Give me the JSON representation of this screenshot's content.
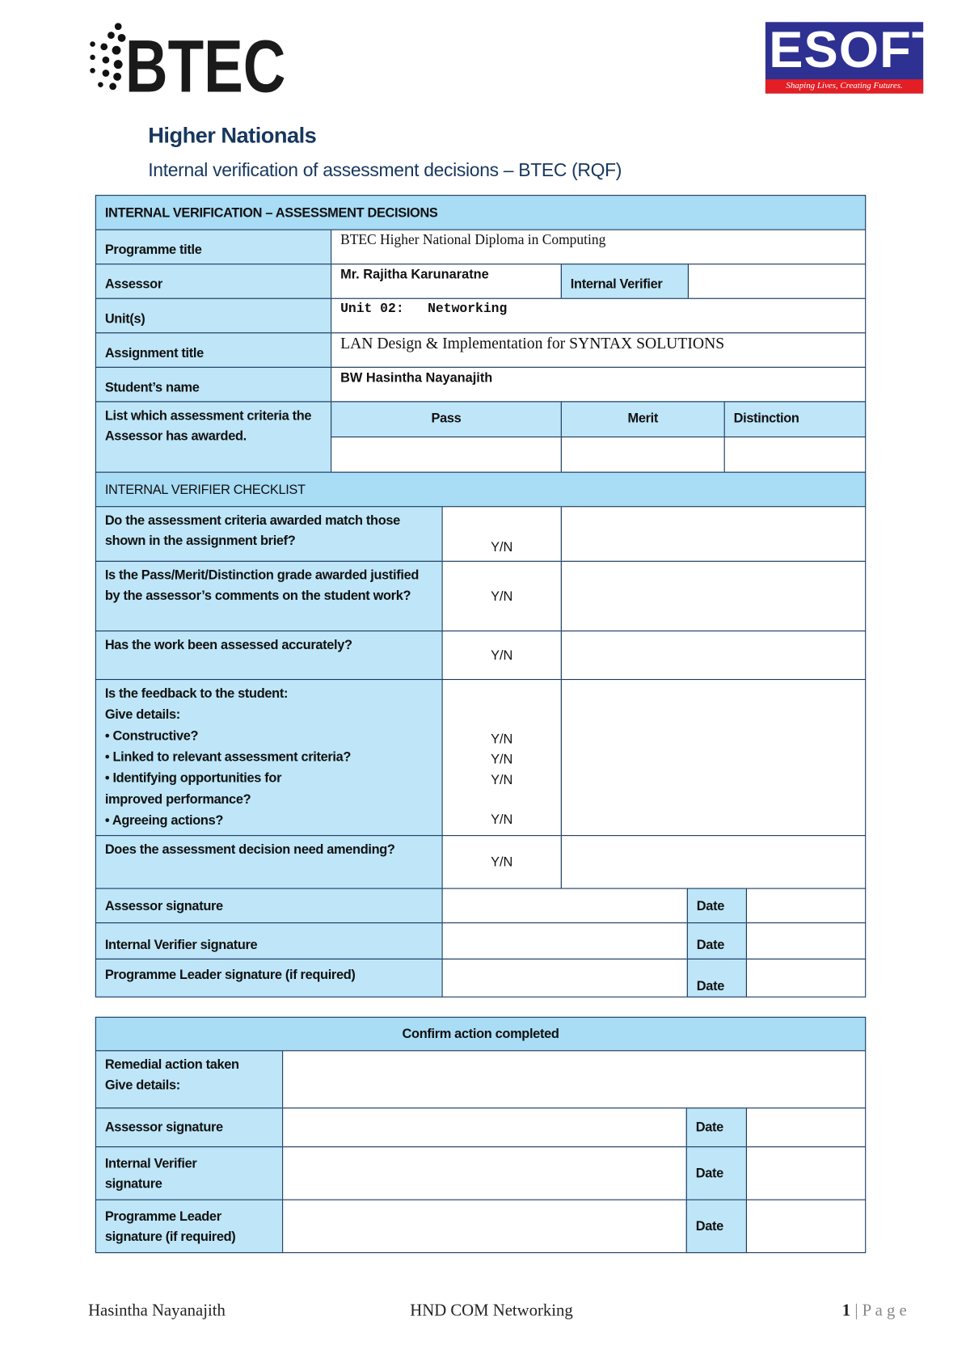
{
  "logos": {
    "btec": "BTEC",
    "esoft": "ESOFT",
    "esoft_tagline": "Shaping Lives, Creating Futures."
  },
  "header": {
    "title": "Higher Nationals",
    "subtitle": "Internal verification of assessment decisions – BTEC (RQF)"
  },
  "decisions": {
    "heading": "INTERNAL VERIFICATION – ASSESSMENT DECISIONS",
    "programme_label": "Programme title",
    "programme_value": "BTEC Higher National Diploma in Computing",
    "assessor_label": "Assessor",
    "assessor_value": "Mr. Rajitha Karunaratne",
    "iv_label": "Internal Verifier",
    "iv_value": "",
    "unit_label": "Unit(s)",
    "unit_value": "Unit 02:   Networking",
    "assignment_label": "Assignment title",
    "assignment_value": "LAN Design & Implementation for SYNTAX SOLUTIONS",
    "student_label": "Student’s name",
    "student_value": "BW Hasintha Nayanajith",
    "criteria_label": "List which assessment criteria the Assessor has awarded.",
    "pass": "Pass",
    "merit": "Merit",
    "distinction": "Distinction"
  },
  "checklist": {
    "heading": "INTERNAL VERIFIER CHECKLIST",
    "q1": "Do the assessment criteria awarded match those shown in the assignment brief?",
    "q2": "Is the Pass/Merit/Distinction grade awarded justified by the assessor’s comments on the student work?",
    "q3": "Has the work been assessed accurately?",
    "q4_intro": "Is the feedback to the student:",
    "q4_give": "Give details:",
    "q4_items": [
      "• Constructive?",
      "• Linked to relevant assessment criteria?",
      "• Identifying opportunities for improved performance?",
      "• Agreeing actions?"
    ],
    "q5": "Does the assessment decision need amending?",
    "yn": "Y/N",
    "assessor_sig": "Assessor signature",
    "iv_sig": "Internal Verifier signature",
    "pl_sig": "Programme Leader signature (if required)",
    "date": "Date"
  },
  "confirm": {
    "heading": "Confirm action completed",
    "remedial": "Remedial action taken",
    "give": "Give details:",
    "assessor_sig": "Assessor signature",
    "iv_sig": "Internal Verifier signature",
    "pl_sig": "Programme Leader signature (if required)",
    "date": "Date"
  },
  "footer": {
    "left": "Hasintha Nayanajith",
    "center": "HND COM Networking",
    "page": "1",
    "page_label": "| P a g e"
  },
  "colors": {
    "border": "#17375e",
    "header_fill": "#a9dcf5",
    "label_fill": "#bee6f8",
    "title": "#17375e",
    "esoft_blue": "#2e3192",
    "esoft_red": "#e31e24"
  }
}
